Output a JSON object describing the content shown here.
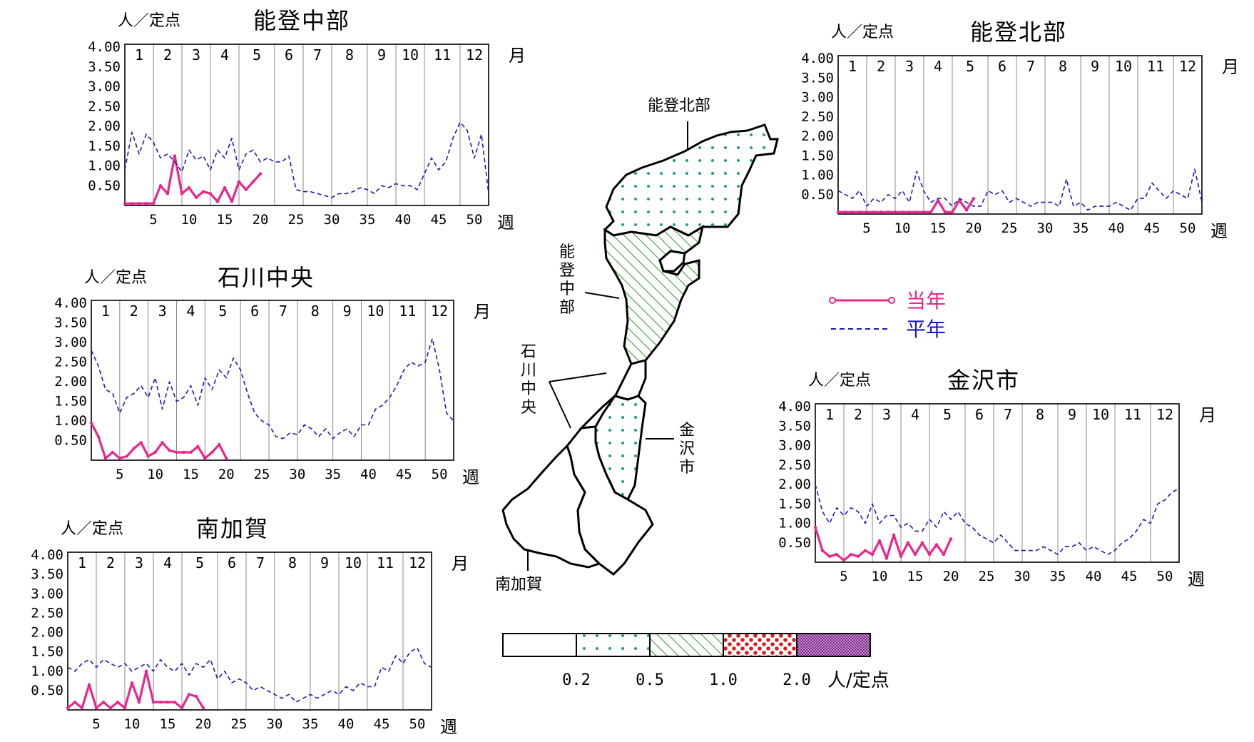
{
  "colors": {
    "current": "#e8278a",
    "average": "#1a1ab8",
    "dots": "#1aa08a",
    "hatch": "#2a9a2a",
    "red_dots": "#d42020",
    "purple": "#9a3ca0"
  },
  "common": {
    "unit": "人／定点",
    "month_word": "月",
    "week_word": "週",
    "months": [
      "1",
      "2",
      "3",
      "4",
      "5",
      "6",
      "7",
      "8",
      "9",
      "10",
      "11",
      "12"
    ],
    "y_ticks": [
      "4.00",
      "3.50",
      "3.00",
      "2.50",
      "2.00",
      "1.50",
      "1.00",
      "0.50"
    ],
    "x_ticks": [
      "5",
      "10",
      "15",
      "20",
      "25",
      "30",
      "35",
      "40",
      "45",
      "50"
    ]
  },
  "legend": {
    "current_label": "当年",
    "average_label": "平年"
  },
  "map": {
    "labels": {
      "noto_hokubu": "能登北部",
      "noto_chubu": [
        "能",
        "登",
        "中",
        "部"
      ],
      "ishikawa_chuo": [
        "石",
        "川",
        "中",
        "央"
      ],
      "kanazawa": [
        "金",
        "沢",
        "市"
      ],
      "minami_kaga": "南加賀"
    }
  },
  "scale": {
    "ticks": [
      "0.2",
      "0.5",
      "1.0",
      "2.0"
    ],
    "unit": "人/定点"
  },
  "chart_data": [
    {
      "type": "line",
      "title": "能登中部",
      "xlabel": "週",
      "ylabel": "人／定点",
      "xlim": [
        1,
        52
      ],
      "ylim": [
        0,
        4
      ],
      "series": [
        {
          "name": "当年",
          "x": [
            1,
            2,
            3,
            4,
            5,
            6,
            7,
            8,
            9,
            10,
            11,
            12,
            13,
            14,
            15,
            16,
            17,
            18,
            19,
            20
          ],
          "values": [
            0.05,
            0.05,
            0.05,
            0.05,
            0.05,
            0.5,
            0.3,
            1.25,
            0.3,
            0.45,
            0.2,
            0.35,
            0.3,
            0.1,
            0.45,
            0.1,
            0.6,
            0.4,
            0.6,
            0.8
          ]
        },
        {
          "name": "平年",
          "x": [
            1,
            2,
            3,
            4,
            5,
            6,
            7,
            8,
            9,
            10,
            11,
            12,
            13,
            14,
            15,
            16,
            17,
            18,
            19,
            20,
            21,
            22,
            23,
            24,
            25,
            26,
            27,
            28,
            29,
            30,
            31,
            32,
            33,
            34,
            35,
            36,
            37,
            38,
            39,
            40,
            41,
            42,
            43,
            44,
            45,
            46,
            47,
            48,
            49,
            50,
            51,
            52
          ],
          "values": [
            0.9,
            1.85,
            1.3,
            1.8,
            1.6,
            1.2,
            1.3,
            1.1,
            0.85,
            1.4,
            1.15,
            1.25,
            0.9,
            1.4,
            1.2,
            1.7,
            0.9,
            1.3,
            1.4,
            1.1,
            1.2,
            1.1,
            1.1,
            1.25,
            0.4,
            0.35,
            0.35,
            0.3,
            0.25,
            0.2,
            0.3,
            0.3,
            0.35,
            0.45,
            0.4,
            0.3,
            0.5,
            0.45,
            0.55,
            0.5,
            0.5,
            0.4,
            0.8,
            1.2,
            0.9,
            1.1,
            1.7,
            2.1,
            1.9,
            1.2,
            1.8,
            0.3
          ]
        }
      ]
    },
    {
      "type": "line",
      "title": "能登北部",
      "xlabel": "週",
      "ylabel": "人／定点",
      "xlim": [
        1,
        52
      ],
      "ylim": [
        0,
        4
      ],
      "series": [
        {
          "name": "当年",
          "x": [
            1,
            2,
            3,
            4,
            5,
            6,
            7,
            8,
            9,
            10,
            11,
            12,
            13,
            14,
            15,
            16,
            17,
            18,
            19,
            20
          ],
          "values": [
            0.05,
            0.05,
            0.05,
            0.05,
            0.05,
            0.05,
            0.05,
            0.05,
            0.05,
            0.05,
            0.05,
            0.05,
            0.05,
            0.05,
            0.35,
            0.05,
            0.05,
            0.35,
            0.1,
            0.4
          ]
        },
        {
          "name": "平年",
          "x": [
            1,
            2,
            3,
            4,
            5,
            6,
            7,
            8,
            9,
            10,
            11,
            12,
            13,
            14,
            15,
            16,
            17,
            18,
            19,
            20,
            21,
            22,
            23,
            24,
            25,
            26,
            27,
            28,
            29,
            30,
            31,
            32,
            33,
            34,
            35,
            36,
            37,
            38,
            39,
            40,
            41,
            42,
            43,
            44,
            45,
            46,
            47,
            48,
            49,
            50,
            51,
            52
          ],
          "values": [
            0.6,
            0.5,
            0.4,
            0.6,
            0.2,
            0.4,
            0.3,
            0.5,
            0.4,
            0.6,
            0.3,
            1.1,
            0.6,
            0.3,
            0.4,
            0.4,
            0.2,
            0.4,
            0.3,
            0.2,
            0.2,
            0.6,
            0.5,
            0.6,
            0.3,
            0.4,
            0.3,
            0.2,
            0.3,
            0.3,
            0.3,
            0.2,
            0.9,
            0.2,
            0.3,
            0.1,
            0.2,
            0.2,
            0.2,
            0.3,
            0.2,
            0.1,
            0.4,
            0.4,
            0.8,
            0.6,
            0.4,
            0.6,
            0.5,
            0.4,
            1.15,
            0.3
          ]
        }
      ]
    },
    {
      "type": "line",
      "title": "石川中央",
      "xlabel": "週",
      "ylabel": "人／定点",
      "xlim": [
        1,
        52
      ],
      "ylim": [
        0,
        4
      ],
      "series": [
        {
          "name": "当年",
          "x": [
            1,
            2,
            3,
            4,
            5,
            6,
            7,
            8,
            9,
            10,
            11,
            12,
            13,
            14,
            15,
            16,
            17,
            18,
            19,
            20
          ],
          "values": [
            0.95,
            0.6,
            0.05,
            0.2,
            0.05,
            0.1,
            0.3,
            0.45,
            0.1,
            0.2,
            0.45,
            0.25,
            0.2,
            0.2,
            0.2,
            0.35,
            0.05,
            0.2,
            0.4,
            0.05
          ]
        },
        {
          "name": "平年",
          "x": [
            1,
            2,
            3,
            4,
            5,
            6,
            7,
            8,
            9,
            10,
            11,
            12,
            13,
            14,
            15,
            16,
            17,
            18,
            19,
            20,
            21,
            22,
            23,
            24,
            25,
            26,
            27,
            28,
            29,
            30,
            31,
            32,
            33,
            34,
            35,
            36,
            37,
            38,
            39,
            40,
            41,
            42,
            43,
            44,
            45,
            46,
            47,
            48,
            49,
            50,
            51,
            52
          ],
          "values": [
            2.8,
            2.4,
            1.8,
            1.7,
            1.2,
            1.6,
            1.7,
            1.9,
            1.6,
            2.1,
            1.3,
            2.0,
            1.5,
            1.6,
            1.9,
            1.4,
            2.1,
            1.8,
            2.3,
            2.1,
            2.6,
            2.3,
            1.7,
            1.2,
            1.0,
            0.9,
            0.6,
            0.55,
            0.7,
            0.65,
            0.9,
            0.8,
            0.6,
            0.8,
            0.55,
            0.7,
            0.8,
            0.6,
            0.9,
            0.9,
            1.3,
            1.4,
            1.6,
            1.9,
            2.3,
            2.5,
            2.4,
            2.5,
            3.1,
            2.3,
            1.2,
            1.0
          ]
        }
      ]
    },
    {
      "type": "line",
      "title": "南加賀",
      "xlabel": "週",
      "ylabel": "人／定点",
      "xlim": [
        1,
        52
      ],
      "ylim": [
        0,
        4
      ],
      "series": [
        {
          "name": "当年",
          "x": [
            1,
            2,
            3,
            4,
            5,
            6,
            7,
            8,
            9,
            10,
            11,
            12,
            13,
            14,
            15,
            16,
            17,
            18,
            19,
            20
          ],
          "values": [
            0.05,
            0.2,
            0.05,
            0.65,
            0.05,
            0.2,
            0.05,
            0.2,
            0.05,
            0.7,
            0.2,
            1.0,
            0.2,
            0.2,
            0.2,
            0.2,
            0.05,
            0.4,
            0.35,
            0.05
          ]
        },
        {
          "name": "平年",
          "x": [
            1,
            2,
            3,
            4,
            5,
            6,
            7,
            8,
            9,
            10,
            11,
            12,
            13,
            14,
            15,
            16,
            17,
            18,
            19,
            20,
            21,
            22,
            23,
            24,
            25,
            26,
            27,
            28,
            29,
            30,
            31,
            32,
            33,
            34,
            35,
            36,
            37,
            38,
            39,
            40,
            41,
            42,
            43,
            44,
            45,
            46,
            47,
            48,
            49,
            50,
            51,
            52
          ],
          "values": [
            1.1,
            1.0,
            1.2,
            1.3,
            1.1,
            1.3,
            1.2,
            1.1,
            1.2,
            1.0,
            1.1,
            1.2,
            1.0,
            1.3,
            1.1,
            1.0,
            1.2,
            0.9,
            1.2,
            1.1,
            1.3,
            0.8,
            1.0,
            0.7,
            0.8,
            0.7,
            0.5,
            0.6,
            0.5,
            0.4,
            0.3,
            0.4,
            0.2,
            0.3,
            0.4,
            0.3,
            0.4,
            0.5,
            0.4,
            0.6,
            0.5,
            0.7,
            0.6,
            0.6,
            1.1,
            1.0,
            1.4,
            1.2,
            1.5,
            1.6,
            1.2,
            1.1
          ]
        }
      ]
    },
    {
      "type": "line",
      "title": "金沢市",
      "xlabel": "週",
      "ylabel": "人／定点",
      "xlim": [
        1,
        52
      ],
      "ylim": [
        0,
        4
      ],
      "series": [
        {
          "name": "当年",
          "x": [
            1,
            2,
            3,
            4,
            5,
            6,
            7,
            8,
            9,
            10,
            11,
            12,
            13,
            14,
            15,
            16,
            17,
            18,
            19,
            20
          ],
          "values": [
            0.9,
            0.3,
            0.15,
            0.2,
            0.05,
            0.2,
            0.15,
            0.3,
            0.2,
            0.55,
            0.1,
            0.7,
            0.15,
            0.5,
            0.2,
            0.5,
            0.2,
            0.45,
            0.2,
            0.6
          ]
        },
        {
          "name": "平年",
          "x": [
            1,
            2,
            3,
            4,
            5,
            6,
            7,
            8,
            9,
            10,
            11,
            12,
            13,
            14,
            15,
            16,
            17,
            18,
            19,
            20,
            21,
            22,
            23,
            24,
            25,
            26,
            27,
            28,
            29,
            30,
            31,
            32,
            33,
            34,
            35,
            36,
            37,
            38,
            39,
            40,
            41,
            42,
            43,
            44,
            45,
            46,
            47,
            48,
            49,
            50,
            51,
            52
          ],
          "values": [
            2.0,
            1.3,
            1.0,
            1.4,
            1.2,
            1.4,
            1.3,
            1.0,
            1.5,
            1.0,
            1.2,
            1.2,
            0.9,
            1.0,
            0.8,
            0.8,
            1.1,
            0.9,
            1.3,
            1.1,
            1.3,
            1.0,
            0.9,
            0.7,
            0.6,
            0.5,
            0.7,
            0.5,
            0.3,
            0.3,
            0.3,
            0.3,
            0.4,
            0.3,
            0.2,
            0.4,
            0.4,
            0.5,
            0.3,
            0.4,
            0.3,
            0.2,
            0.3,
            0.5,
            0.6,
            0.8,
            1.1,
            1.0,
            1.5,
            1.6,
            1.8,
            1.9
          ]
        }
      ]
    }
  ]
}
